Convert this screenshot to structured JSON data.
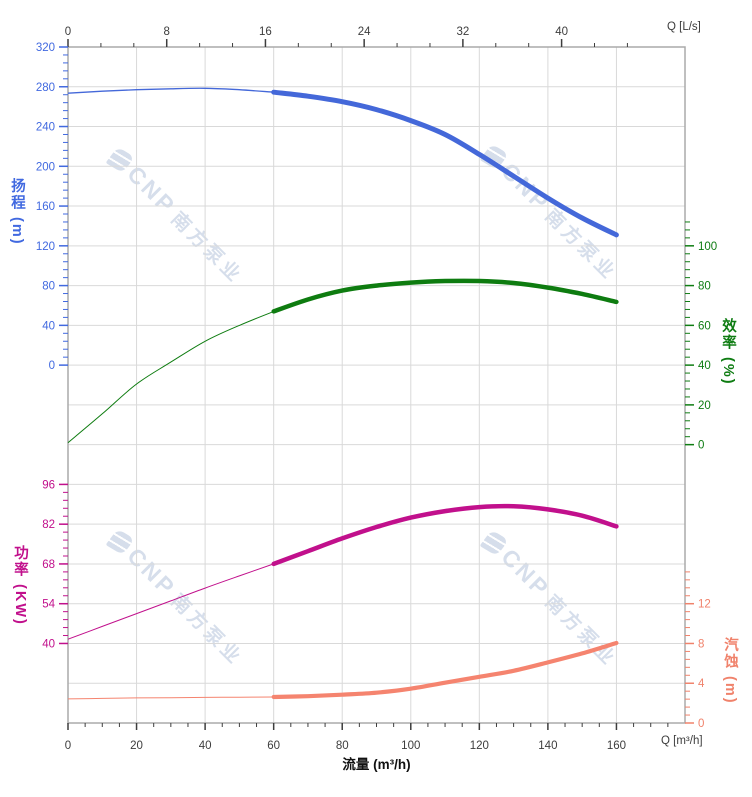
{
  "watermark": {
    "brand": "CNP",
    "company": "南方泵业",
    "color": "#ccd7e7"
  },
  "chart_data": {
    "type": "line",
    "title": "",
    "x": {
      "bottom": {
        "axis_label": "流量 (m³/h)",
        "corner_label": "Q [m³/h]",
        "unit": "m³/h",
        "major_ticks": [
          0,
          20,
          40,
          60,
          80,
          100,
          120,
          140,
          160
        ],
        "minor_step": 5,
        "minor_max": 175,
        "range": [
          0,
          180
        ],
        "tick_color": "#3d3d3d"
      },
      "top": {
        "corner_label": "Q [L/s]",
        "unit": "L/s",
        "major_ticks": [
          0,
          8,
          16,
          24,
          32,
          40
        ],
        "minor_divisions": 3,
        "minor_count_total": 17,
        "range": [
          0,
          50
        ],
        "tick_color": "#3d3d3d"
      }
    },
    "grid": {
      "color": "#d9d9d9",
      "border_color": "#aaaaaa",
      "x_step": 20,
      "rows": 17
    },
    "y_axes": {
      "head": {
        "title": "扬程",
        "unit": "(m)",
        "side": "left",
        "color": "#4169e0",
        "major_ticks": [
          320,
          280,
          240,
          200,
          160,
          120,
          80,
          40,
          0
        ],
        "minor_step": 8,
        "minors_above": 0,
        "min_value": 0,
        "top_value": 320,
        "top_row": 0,
        "units_per_row": 40
      },
      "efficiency": {
        "title": "效率",
        "unit": "(%)",
        "side": "right",
        "color": "#0e7c12",
        "major_ticks": [
          100,
          80,
          60,
          40,
          20,
          0
        ],
        "minor_step": 4,
        "minors_above": 3,
        "min_value": 0,
        "top_value": 100,
        "top_row": 5,
        "units_per_row": 20
      },
      "power": {
        "title": "功率",
        "unit": "(KW)",
        "side": "left",
        "color": "#c1108c",
        "major_ticks": [
          96,
          82,
          68,
          54,
          40
        ],
        "minor_step": 2.8,
        "minors_above": 0,
        "min_value": 40,
        "top_value": 96,
        "top_row": 11,
        "units_per_row": 14
      },
      "npsh": {
        "title": "汽蚀",
        "unit": "(m)",
        "side": "right",
        "color": "#f0826b",
        "major_ticks": [
          12,
          8,
          4,
          0
        ],
        "minor_step": 0.8,
        "minors_above": 4,
        "min_value": 0,
        "top_value": 12,
        "top_row": 14,
        "units_per_row": 4
      }
    },
    "series": [
      {
        "name": "head",
        "axis": "head",
        "color": "#4468d9",
        "bold_range": [
          60,
          160
        ],
        "thin_width": 1.3,
        "bold_width": 5,
        "points": [
          [
            0,
            273.5
          ],
          [
            10,
            275.5
          ],
          [
            20,
            277
          ],
          [
            30,
            278
          ],
          [
            40,
            278.5
          ],
          [
            50,
            277
          ],
          [
            60,
            274.5
          ],
          [
            70,
            270.5
          ],
          [
            80,
            265
          ],
          [
            90,
            257
          ],
          [
            100,
            246
          ],
          [
            110,
            232
          ],
          [
            120,
            212
          ],
          [
            130,
            190
          ],
          [
            140,
            168
          ],
          [
            150,
            148
          ],
          [
            160,
            131
          ]
        ]
      },
      {
        "name": "efficiency",
        "axis": "efficiency",
        "color": "#0e7c10",
        "bold_range": [
          60,
          160
        ],
        "thin_width": 1,
        "bold_width": 4.5,
        "points": [
          [
            0,
            1
          ],
          [
            10,
            15.5
          ],
          [
            20,
            30.5
          ],
          [
            30,
            41.5
          ],
          [
            40,
            52
          ],
          [
            50,
            60
          ],
          [
            60,
            67
          ],
          [
            70,
            73
          ],
          [
            80,
            77.5
          ],
          [
            90,
            80
          ],
          [
            100,
            81.5
          ],
          [
            110,
            82.3
          ],
          [
            120,
            82.3
          ],
          [
            130,
            81.3
          ],
          [
            140,
            79
          ],
          [
            150,
            75.8
          ],
          [
            160,
            71.8
          ]
        ]
      },
      {
        "name": "power",
        "axis": "power",
        "color": "#c1108c",
        "bold_range": [
          60,
          160
        ],
        "thin_width": 1,
        "bold_width": 4.5,
        "points": [
          [
            0,
            41.5
          ],
          [
            10,
            46
          ],
          [
            20,
            50.5
          ],
          [
            30,
            55
          ],
          [
            40,
            59.5
          ],
          [
            50,
            63.8
          ],
          [
            60,
            68
          ],
          [
            70,
            72.5
          ],
          [
            80,
            77
          ],
          [
            90,
            81
          ],
          [
            100,
            84.3
          ],
          [
            110,
            86.6
          ],
          [
            120,
            88
          ],
          [
            130,
            88.3
          ],
          [
            140,
            87.2
          ],
          [
            150,
            85
          ],
          [
            160,
            81.2
          ]
        ]
      },
      {
        "name": "npsh",
        "axis": "npsh",
        "color": "#f5846f",
        "bold_range": [
          60,
          160
        ],
        "thin_width": 1,
        "bold_width": 4.2,
        "points": [
          [
            0,
            2.42
          ],
          [
            10,
            2.47
          ],
          [
            20,
            2.52
          ],
          [
            30,
            2.55
          ],
          [
            40,
            2.58
          ],
          [
            50,
            2.6
          ],
          [
            60,
            2.62
          ],
          [
            70,
            2.7
          ],
          [
            80,
            2.85
          ],
          [
            90,
            3.05
          ],
          [
            100,
            3.45
          ],
          [
            110,
            4.05
          ],
          [
            120,
            4.65
          ],
          [
            130,
            5.25
          ],
          [
            140,
            6.1
          ],
          [
            150,
            7.0
          ],
          [
            160,
            8.05
          ]
        ]
      }
    ]
  }
}
